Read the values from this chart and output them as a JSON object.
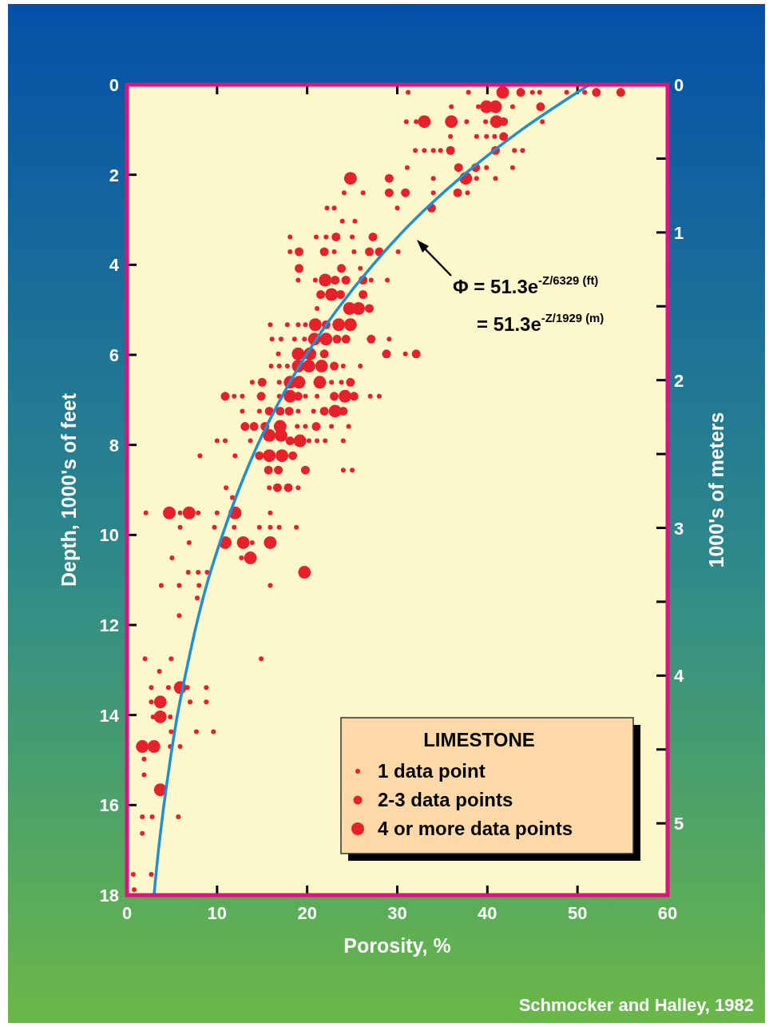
{
  "chart_data": {
    "type": "scatter",
    "xlabel": "Porosity, %",
    "ylabel": "Depth, 1000's of feet",
    "y2label": "1000's of meters",
    "xlim": [
      0,
      60
    ],
    "xticks": [
      0,
      10,
      20,
      30,
      40,
      50,
      60
    ],
    "ylim": [
      18,
      0
    ],
    "yticks": [
      0,
      2,
      4,
      6,
      8,
      10,
      12,
      14,
      16,
      18
    ],
    "y2lim": [
      5.486,
      0
    ],
    "y2ticks": [
      0,
      {
        "value": 0.5,
        "label": null
      },
      1,
      {
        "value": 1.5,
        "label": null
      },
      2,
      {
        "value": 2.5,
        "label": null
      },
      3,
      {
        "value": 3.5,
        "label": null
      },
      4,
      {
        "value": 4.5,
        "label": null
      },
      5
    ],
    "grid": false,
    "legend": "bottom right",
    "legend_title": "LIMESTONE",
    "marker": "circle",
    "annotations": [
      "Φ = 51.3e$^{-Z/6329 (ft)}$",
      "= 51.3e$^{-Z/1929 (m)}$",
      "Schmocker and Halley, 1982"
    ],
    "series": [
      {
        "name": "1 data point",
        "color": "#e8202a",
        "x": [
          31.2,
          37.9,
          45.0,
          45.8,
          48.8,
          50.8,
          36.0,
          39.0,
          42.8,
          31.0,
          32.1,
          37.7,
          39.8,
          46.1,
          35.9,
          38.8,
          39.9,
          40.8,
          32.0,
          33.0,
          34.0,
          34.8,
          43.0,
          43.9,
          31.1,
          39.9,
          42.8,
          34.0,
          38.8,
          40.9,
          24.1,
          26.2,
          34.0,
          37.8,
          22.2,
          23.0,
          30.0,
          23.9,
          25.3,
          18.1,
          21.0,
          22.1,
          25.0,
          18.1,
          23.0,
          25.2,
          30.1,
          25.9,
          19.0,
          20.9,
          27.1,
          28.9,
          21.1,
          15.9,
          17.8,
          19.0,
          19.8,
          16.1,
          17.1,
          18.6,
          19.7,
          29.1,
          16.8,
          30.9,
          16.0,
          16.9,
          17.8,
          24.0,
          25.9,
          13.9,
          16.9,
          22.7,
          23.8,
          11.9,
          12.8,
          16.9,
          19.8,
          21.1,
          27.0,
          28.0,
          12.8,
          14.7,
          19.0,
          20.7,
          18.9,
          19.8,
          22.7,
          24.6,
          10.0,
          10.9,
          13.7,
          20.2,
          21.1,
          22.0,
          24.0,
          8.1,
          12.0,
          24.0,
          25.0,
          11.0,
          15.8,
          19.0,
          11.7,
          2.1,
          5.9,
          7.9,
          10.0,
          15.9,
          5.9,
          9.7,
          11.9,
          14.7,
          15.9,
          16.9,
          18.8,
          6.9,
          13.9,
          5.0,
          12.7,
          6.8,
          7.9,
          8.9,
          3.8,
          5.8,
          8.0,
          15.9,
          7.8,
          5.8,
          2.0,
          4.9,
          14.9,
          3.6,
          2.7,
          4.6,
          6.7,
          8.8,
          2.7,
          7.0,
          8.8,
          2.9,
          4.8,
          4.9,
          7.7,
          9.6,
          4.8,
          5.9,
          1.9,
          1.9,
          1.7,
          2.8,
          5.7,
          1.7,
          0.7,
          2.7,
          0.8
        ],
        "values": [
          0.17,
          0.17,
          0.17,
          0.17,
          0.17,
          0.17,
          0.49,
          0.49,
          0.49,
          0.82,
          0.82,
          0.82,
          0.82,
          0.82,
          1.15,
          1.15,
          1.15,
          1.15,
          1.46,
          1.46,
          1.46,
          1.46,
          1.46,
          1.46,
          1.84,
          1.84,
          1.84,
          2.08,
          2.08,
          2.08,
          2.4,
          2.4,
          2.4,
          2.4,
          2.74,
          2.74,
          2.74,
          3.03,
          3.03,
          3.38,
          3.38,
          3.38,
          3.38,
          3.71,
          3.71,
          3.71,
          3.71,
          4.08,
          4.34,
          4.34,
          4.34,
          4.34,
          4.97,
          5.33,
          5.33,
          5.33,
          5.33,
          5.65,
          5.65,
          5.65,
          5.65,
          5.65,
          5.98,
          5.98,
          6.25,
          6.25,
          6.25,
          6.25,
          6.25,
          6.61,
          6.61,
          6.61,
          6.61,
          6.92,
          6.92,
          6.92,
          6.92,
          6.92,
          6.92,
          6.92,
          7.25,
          7.25,
          7.25,
          7.25,
          7.59,
          7.59,
          7.59,
          7.59,
          7.91,
          7.91,
          7.91,
          7.91,
          7.91,
          7.91,
          7.91,
          8.24,
          8.24,
          8.56,
          8.56,
          8.95,
          8.95,
          8.95,
          9.17,
          9.51,
          9.51,
          9.51,
          9.51,
          9.51,
          9.83,
          9.83,
          9.83,
          9.83,
          9.83,
          9.83,
          9.83,
          10.17,
          10.17,
          10.51,
          10.51,
          10.83,
          10.83,
          10.83,
          11.12,
          11.12,
          11.12,
          11.12,
          11.4,
          11.79,
          12.75,
          12.75,
          12.75,
          13.03,
          13.39,
          13.39,
          13.39,
          13.39,
          13.71,
          13.71,
          13.71,
          14.04,
          14.04,
          14.37,
          14.37,
          14.37,
          14.7,
          14.7,
          14.98,
          15.33,
          16.26,
          16.26,
          16.26,
          16.63,
          17.54,
          17.54,
          17.88
        ]
      },
      {
        "name": "2-3 data points",
        "color": "#e8202a",
        "x": [
          43.7,
          52.1,
          54.8,
          45.9,
          41.8,
          41.8,
          35.9,
          40.9,
          36.8,
          38.7,
          29.1,
          29.1,
          30.9,
          36.7,
          33.8,
          23.2,
          27.3,
          19.1,
          21.9,
          26.9,
          28.0,
          19.1,
          23.8,
          23.1,
          24.3,
          26.2,
          21.5,
          23.7,
          26.2,
          26.9,
          22.1,
          23.3,
          24.3,
          27.1,
          21.9,
          28.8,
          32.1,
          23.0,
          15.0,
          24.8,
          10.9,
          14.9,
          19.0,
          23.0,
          25.2,
          15.8,
          17.0,
          18.0,
          21.9,
          24.0,
          13.1,
          14.1,
          15.3,
          21.0,
          18.1,
          14.7,
          18.4,
          15.7,
          16.8,
          19.8,
          16.7,
          17.9
        ],
        "values": [
          0.17,
          0.17,
          0.17,
          0.49,
          0.82,
          1.15,
          1.46,
          1.46,
          1.84,
          1.84,
          2.08,
          2.4,
          2.4,
          2.4,
          2.74,
          3.38,
          3.38,
          3.71,
          3.71,
          3.71,
          3.71,
          4.08,
          4.08,
          4.34,
          4.34,
          4.34,
          4.66,
          4.66,
          4.66,
          4.97,
          5.33,
          5.65,
          5.65,
          5.65,
          5.98,
          5.98,
          5.98,
          6.25,
          6.61,
          6.61,
          6.92,
          6.92,
          6.92,
          6.92,
          6.92,
          7.25,
          7.25,
          7.25,
          7.25,
          7.25,
          7.59,
          7.59,
          7.59,
          7.59,
          7.91,
          8.24,
          8.24,
          8.56,
          8.56,
          8.56,
          8.95,
          8.95
        ]
      },
      {
        "name": "4 or more data points",
        "color": "#e8202a",
        "x": [
          41.7,
          39.9,
          40.9,
          33.0,
          36.0,
          41.0,
          24.8,
          37.6,
          22.0,
          22.7,
          24.7,
          25.7,
          20.9,
          23.5,
          24.8,
          20.8,
          22.1,
          19.0,
          20.3,
          19.0,
          20.2,
          21.6,
          18.1,
          19.1,
          21.4,
          18.1,
          24.2,
          23.1,
          17.0,
          15.8,
          17.1,
          19.2,
          15.8,
          17.2,
          4.7,
          6.9,
          12.0,
          10.9,
          12.9,
          15.9,
          13.7,
          19.7,
          5.9,
          3.7,
          3.7,
          1.7,
          3.0,
          3.7
        ],
        "values": [
          0.17,
          0.49,
          0.49,
          0.82,
          0.82,
          0.82,
          2.08,
          2.08,
          4.34,
          4.66,
          4.97,
          4.97,
          5.33,
          5.33,
          5.33,
          5.65,
          5.65,
          5.98,
          5.98,
          6.25,
          6.25,
          6.25,
          6.61,
          6.61,
          6.61,
          6.92,
          6.92,
          7.25,
          7.59,
          7.79,
          7.79,
          7.91,
          8.24,
          8.24,
          9.51,
          9.51,
          9.51,
          10.17,
          10.17,
          10.17,
          10.51,
          10.83,
          13.39,
          13.71,
          14.04,
          14.7,
          14.7,
          15.66
        ]
      },
      {
        "type": "line",
        "color": "#1e8fd2",
        "marker": "none",
        "x": [
          51.3,
          43.8,
          37.4,
          31.9,
          27.3,
          23.3,
          19.9,
          17.0,
          14.5,
          12.4,
          10.6,
          9.0,
          7.7,
          6.6,
          5.6,
          4.8,
          4.1,
          3.5,
          3.0
        ],
        "values": [
          0,
          1,
          2,
          3,
          4,
          5,
          6,
          7,
          8,
          9,
          10,
          11,
          12,
          13,
          14,
          15,
          16,
          17,
          18
        ]
      }
    ]
  }
}
